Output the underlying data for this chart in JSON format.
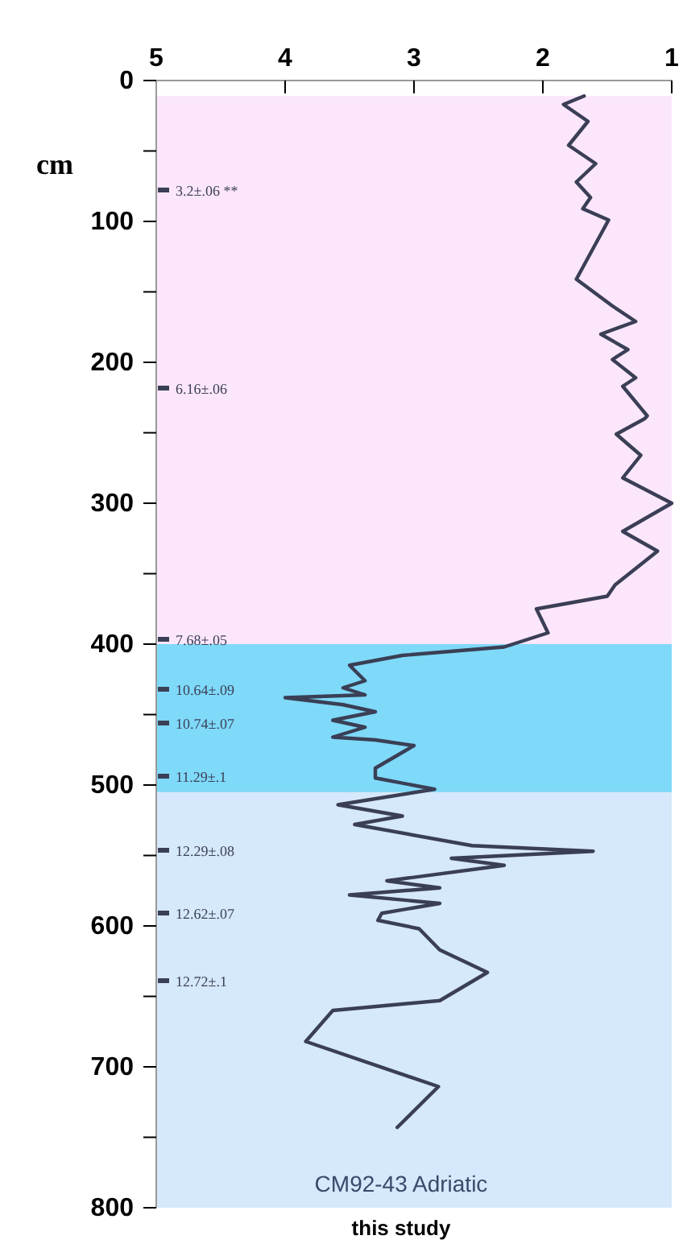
{
  "chart_data": {
    "type": "line",
    "ylabel": "cm",
    "xlim": [
      5,
      1
    ],
    "xticks": [
      5,
      4,
      3,
      2,
      1
    ],
    "ylim": [
      800,
      0
    ],
    "yticks": [
      0,
      {
        "value": 50,
        "label": null
      },
      100,
      {
        "value": 150,
        "label": null
      },
      200,
      {
        "value": 250,
        "label": null
      },
      300,
      {
        "value": 350,
        "label": null
      },
      400,
      {
        "value": 450,
        "label": null
      },
      500,
      {
        "value": 550,
        "label": null
      },
      600,
      {
        "value": 650,
        "label": null
      },
      700,
      {
        "value": 750,
        "label": null
      },
      800
    ],
    "grid": false,
    "marker": "none",
    "line_style": "solid",
    "bands": [
      {
        "axis": "y",
        "from": 11,
        "to": 400,
        "color": "#fce6fc"
      },
      {
        "axis": "y",
        "from": 400,
        "to": 800,
        "color": "#d6e8fb"
      },
      {
        "axis": "y",
        "from": 400,
        "to": 505,
        "color": "#7fd9f9"
      }
    ],
    "series": [
      {
        "color": "#3a3f55",
        "x": [
          1.68,
          1.84,
          1.65,
          1.8,
          1.59,
          1.74,
          1.63,
          1.69,
          1.49,
          1.74,
          1.46,
          1.28,
          1.55,
          1.34,
          1.46,
          1.28,
          1.38,
          1.19,
          1.21,
          1.43,
          1.24,
          1.38,
          1.0,
          1.38,
          1.11,
          1.44,
          1.5,
          2.05,
          1.96,
          2.3,
          3.09,
          3.5,
          3.38,
          3.55,
          3.38,
          4.0,
          3.55,
          3.3,
          3.63,
          3.38,
          3.63,
          3.3,
          3.0,
          3.3,
          3.3,
          2.84,
          3.59,
          3.09,
          3.46,
          2.55,
          1.61,
          2.71,
          2.3,
          3.21,
          2.8,
          3.5,
          2.8,
          3.25,
          3.28,
          2.96,
          2.8,
          2.43,
          2.8,
          3.63,
          3.84,
          2.81,
          3.13
        ],
        "values": [
          11,
          17,
          29,
          46,
          59,
          72,
          83,
          91,
          99,
          141,
          160,
          171,
          180,
          191,
          198,
          211,
          217,
          238,
          240,
          251,
          266,
          282,
          300,
          320,
          334,
          358,
          366,
          375,
          392,
          402,
          408,
          415,
          426,
          431,
          436,
          438,
          443,
          448,
          454,
          459,
          466,
          468,
          472,
          488,
          495,
          503,
          514,
          522,
          528,
          543,
          547,
          552,
          557,
          568,
          573,
          578,
          584,
          591,
          596,
          602,
          617,
          633,
          653,
          660,
          682,
          714,
          743
        ]
      }
    ],
    "annotations": [
      "3.2±.06 **",
      "6.16±.06",
      "7.68±.05",
      "10.64±.09",
      "10.74±.07",
      "11.29±.1",
      "12.29±.08",
      "12.62±.07",
      "12.72±.1",
      "CM92-43  Adriatic",
      "this study"
    ]
  }
}
